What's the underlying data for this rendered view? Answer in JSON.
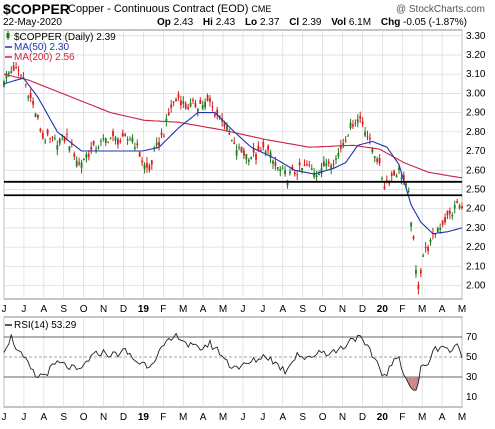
{
  "header": {
    "symbol": "$COPPER",
    "description": "Copper - Continuous Contract (EOD)",
    "exchange": "CME",
    "date": "22-May-2020",
    "brand": "@ StockCharts.com",
    "open_label": "Op",
    "open": "2.43",
    "high_label": "Hi",
    "high": "2.43",
    "low_label": "Lo",
    "low": "2.37",
    "close_label": "Cl",
    "close": "2.39",
    "vol_label": "Vol",
    "vol": "6.1M",
    "chg_label": "Chg",
    "chg": "-0.05 (-1.87%)"
  },
  "colors": {
    "up": "#1f7a1f",
    "down": "#d42020",
    "ma50": "#2233aa",
    "ma200": "#cc2244",
    "rsi": "#222222",
    "rsi_fill": "#c98787",
    "grid": "#d8d8d8"
  },
  "chart_data": [
    {
      "type": "candlestick",
      "legend": [
        {
          "label": "$COPPER (Daily) 2.39",
          "swatch": "price"
        },
        {
          "label": "MA(50) 2.30",
          "swatch": "ma50"
        },
        {
          "label": "MA(200) 2.56",
          "swatch": "ma200"
        }
      ],
      "x_tick_labels": [
        "J",
        "J",
        "A",
        "S",
        "O",
        "N",
        "D",
        "19",
        "F",
        "M",
        "A",
        "M",
        "J",
        "J",
        "A",
        "S",
        "O",
        "N",
        "D",
        "20",
        "F",
        "M",
        "A",
        "M"
      ],
      "ylim": [
        1.93,
        3.33
      ],
      "y_ticks": [
        2.0,
        2.1,
        2.2,
        2.3,
        2.4,
        2.5,
        2.6,
        2.7,
        2.8,
        2.9,
        3.0,
        3.1,
        3.2,
        3.3
      ],
      "y_tick_labels": [
        "2.00",
        "2.10",
        "2.20",
        "2.30",
        "2.40",
        "2.50",
        "2.60",
        "2.70",
        "2.80",
        "2.90",
        "3.00",
        "3.10",
        "3.20",
        "3.30"
      ],
      "horizontal_lines": [
        2.54,
        2.47
      ],
      "price_path": [
        [
          0,
          3.08
        ],
        [
          4,
          3.13
        ],
        [
          8,
          3.08
        ],
        [
          13,
          2.9
        ],
        [
          16,
          2.77
        ],
        [
          21,
          2.75
        ],
        [
          26,
          2.77
        ],
        [
          31,
          2.63
        ],
        [
          34,
          2.68
        ],
        [
          38,
          2.72
        ],
        [
          43,
          2.77
        ],
        [
          48,
          2.75
        ],
        [
          53,
          2.77
        ],
        [
          58,
          2.62
        ],
        [
          60,
          2.6
        ],
        [
          63,
          2.72
        ],
        [
          66,
          2.8
        ],
        [
          69,
          2.93
        ],
        [
          72,
          2.98
        ],
        [
          75,
          2.93
        ],
        [
          79,
          2.94
        ],
        [
          85,
          2.95
        ],
        [
          87,
          2.9
        ],
        [
          90,
          2.87
        ],
        [
          95,
          2.72
        ],
        [
          100,
          2.68
        ],
        [
          104,
          2.67
        ],
        [
          108,
          2.72
        ],
        [
          112,
          2.62
        ],
        [
          117,
          2.57
        ],
        [
          122,
          2.6
        ],
        [
          125,
          2.62
        ],
        [
          129,
          2.59
        ],
        [
          133,
          2.64
        ],
        [
          137,
          2.66
        ],
        [
          140,
          2.75
        ],
        [
          144,
          2.85
        ],
        [
          147,
          2.87
        ],
        [
          149,
          2.82
        ],
        [
          151,
          2.74
        ],
        [
          154,
          2.66
        ],
        [
          157,
          2.52
        ],
        [
          160,
          2.57
        ],
        [
          163,
          2.6
        ],
        [
          165,
          2.55
        ],
        [
          167,
          2.47
        ],
        [
          169,
          2.22
        ],
        [
          170,
          2.07
        ],
        [
          171,
          2.0
        ],
        [
          173,
          2.16
        ],
        [
          176,
          2.22
        ],
        [
          179,
          2.3
        ],
        [
          182,
          2.34
        ],
        [
          185,
          2.38
        ],
        [
          187,
          2.43
        ],
        [
          189,
          2.39
        ]
      ],
      "ma50_path": [
        [
          0,
          3.05
        ],
        [
          8,
          3.08
        ],
        [
          14,
          2.98
        ],
        [
          22,
          2.8
        ],
        [
          32,
          2.7
        ],
        [
          46,
          2.7
        ],
        [
          57,
          2.7
        ],
        [
          64,
          2.72
        ],
        [
          72,
          2.82
        ],
        [
          80,
          2.9
        ],
        [
          87,
          2.9
        ],
        [
          95,
          2.8
        ],
        [
          102,
          2.72
        ],
        [
          112,
          2.66
        ],
        [
          120,
          2.6
        ],
        [
          128,
          2.58
        ],
        [
          136,
          2.61
        ],
        [
          141,
          2.64
        ],
        [
          146,
          2.73
        ],
        [
          152,
          2.75
        ],
        [
          158,
          2.72
        ],
        [
          163,
          2.63
        ],
        [
          168,
          2.42
        ],
        [
          172,
          2.33
        ],
        [
          177,
          2.27
        ],
        [
          183,
          2.28
        ],
        [
          189,
          2.3
        ]
      ],
      "ma200_path": [
        [
          0,
          3.1
        ],
        [
          10,
          3.07
        ],
        [
          26,
          2.99
        ],
        [
          44,
          2.9
        ],
        [
          58,
          2.86
        ],
        [
          72,
          2.85
        ],
        [
          90,
          2.81
        ],
        [
          108,
          2.76
        ],
        [
          126,
          2.72
        ],
        [
          144,
          2.73
        ],
        [
          155,
          2.71
        ],
        [
          165,
          2.64
        ],
        [
          175,
          2.59
        ],
        [
          189,
          2.56
        ]
      ]
    },
    {
      "type": "line",
      "legend": [
        {
          "label": "RSI(14) 53.29",
          "swatch": "rsi"
        }
      ],
      "x_tick_labels": [
        "J",
        "J",
        "A",
        "S",
        "O",
        "N",
        "D",
        "19",
        "F",
        "M",
        "A",
        "M",
        "J",
        "J",
        "A",
        "S",
        "O",
        "N",
        "D",
        "20",
        "F",
        "M",
        "A",
        "M"
      ],
      "ylim": [
        0,
        90
      ],
      "y_ticks": [
        10,
        30,
        50,
        70
      ],
      "y_tick_labels": [
        "10",
        "30",
        "50",
        "70"
      ],
      "reference_levels": [
        70,
        50,
        30
      ],
      "rsi_path": [
        [
          0,
          58
        ],
        [
          3,
          70
        ],
        [
          6,
          55
        ],
        [
          10,
          42
        ],
        [
          13,
          30
        ],
        [
          17,
          33
        ],
        [
          22,
          44
        ],
        [
          27,
          40
        ],
        [
          31,
          35
        ],
        [
          35,
          48
        ],
        [
          40,
          55
        ],
        [
          45,
          52
        ],
        [
          50,
          56
        ],
        [
          55,
          45
        ],
        [
          60,
          42
        ],
        [
          64,
          55
        ],
        [
          68,
          65
        ],
        [
          72,
          72
        ],
        [
          76,
          62
        ],
        [
          80,
          58
        ],
        [
          85,
          63
        ],
        [
          89,
          55
        ],
        [
          93,
          42
        ],
        [
          98,
          40
        ],
        [
          103,
          46
        ],
        [
          108,
          52
        ],
        [
          112,
          44
        ],
        [
          116,
          36
        ],
        [
          121,
          54
        ],
        [
          125,
          47
        ],
        [
          130,
          56
        ],
        [
          135,
          54
        ],
        [
          140,
          60
        ],
        [
          144,
          70
        ],
        [
          147,
          68
        ],
        [
          151,
          55
        ],
        [
          154,
          45
        ],
        [
          157,
          30
        ],
        [
          160,
          42
        ],
        [
          163,
          50
        ],
        [
          166,
          28
        ],
        [
          168,
          20
        ],
        [
          170,
          14
        ],
        [
          172,
          38
        ],
        [
          175,
          45
        ],
        [
          178,
          58
        ],
        [
          181,
          62
        ],
        [
          184,
          56
        ],
        [
          187,
          60
        ],
        [
          189,
          53
        ]
      ]
    }
  ]
}
